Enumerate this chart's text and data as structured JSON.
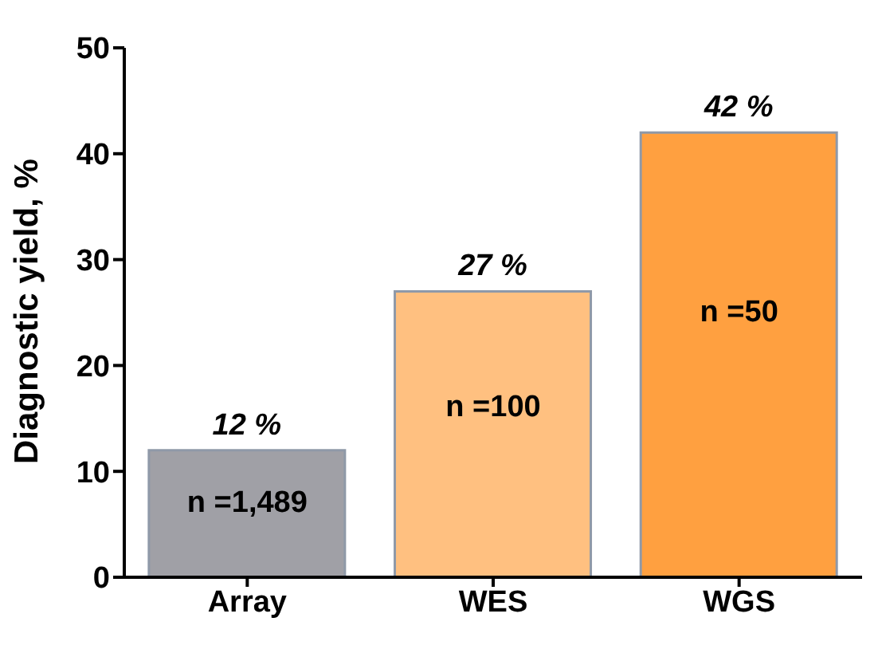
{
  "chart_data": {
    "type": "bar",
    "ylabel": "Diagnostic yield, %",
    "categories": [
      "Array",
      "WES",
      "WGS"
    ],
    "values": [
      12,
      27,
      42
    ],
    "colors": [
      "#a0a0a6",
      "#ffc080",
      "#ffa040"
    ],
    "value_labels": [
      "12 %",
      "27 %",
      "42 %"
    ],
    "annotations": [
      "n =1,489",
      "n =100",
      "n =50"
    ],
    "ylim": [
      0,
      50
    ],
    "yticks": [
      0,
      10,
      20,
      30,
      40,
      50
    ],
    "grid": false
  }
}
